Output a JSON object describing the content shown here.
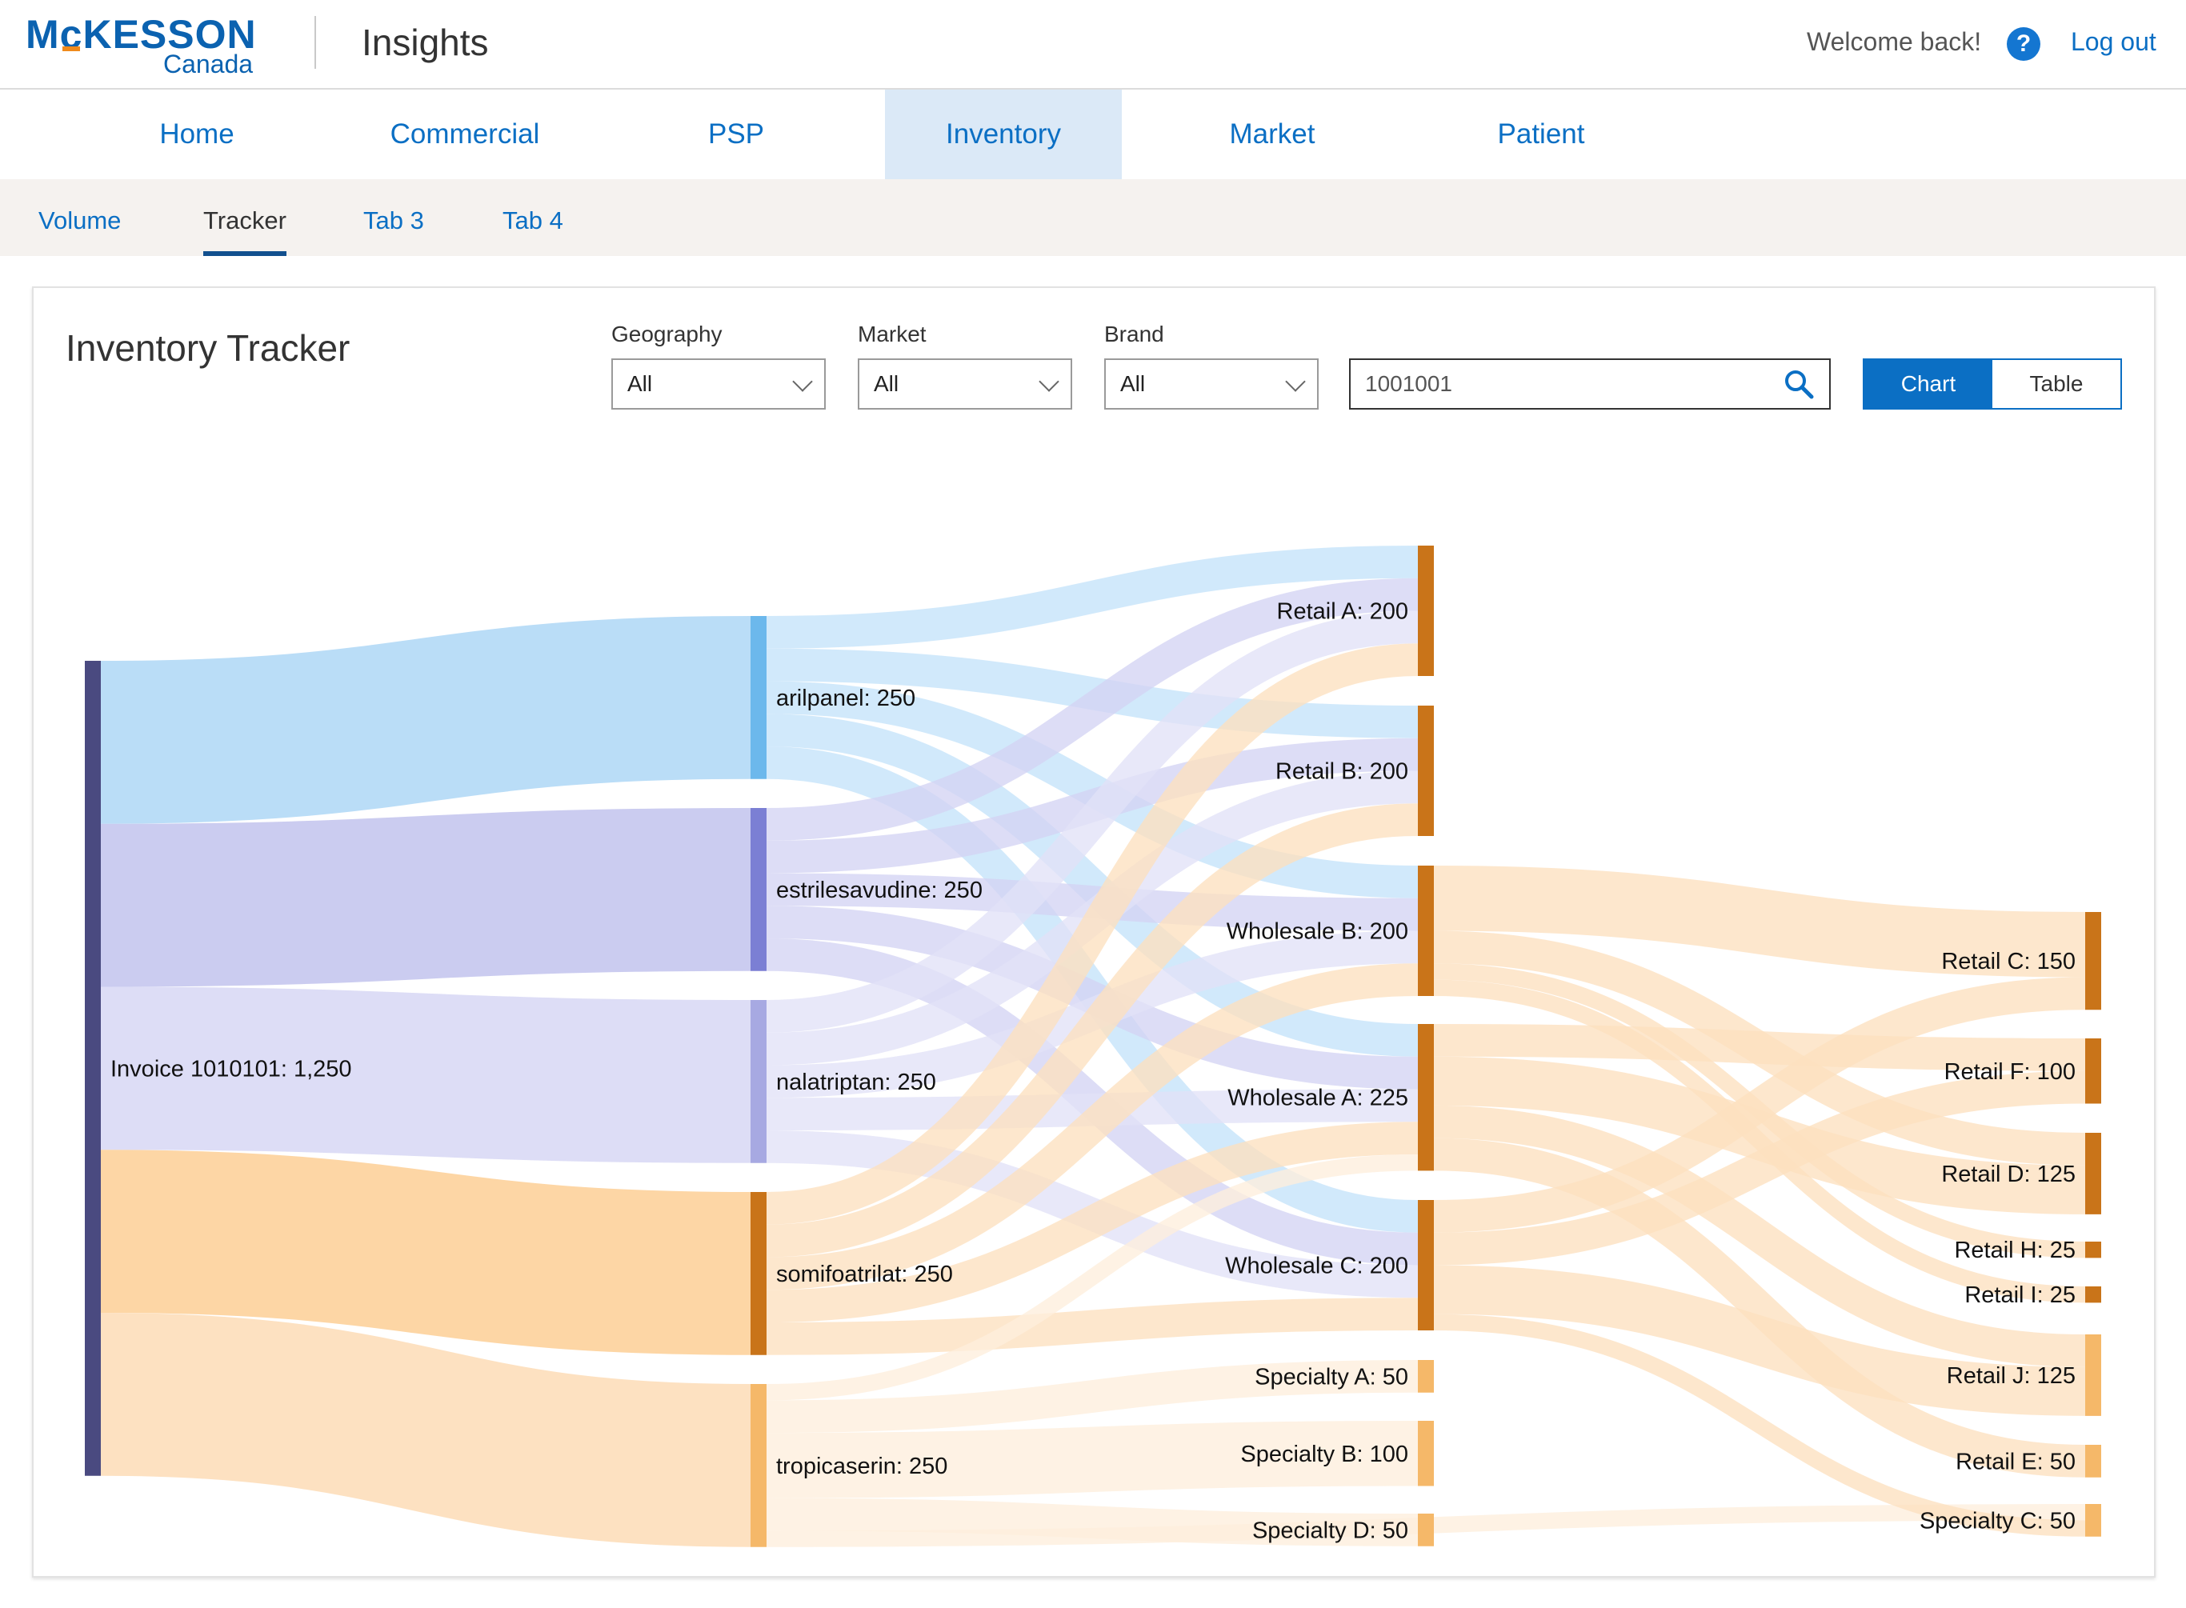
{
  "header": {
    "logo_text": "McKESSON",
    "logo_sub": "Canada",
    "app_title": "Insights",
    "welcome": "Welcome back!",
    "help_glyph": "?",
    "logout": "Log out"
  },
  "main_nav": [
    {
      "label": "Home",
      "active": false
    },
    {
      "label": "Commercial",
      "active": false
    },
    {
      "label": "PSP",
      "active": false
    },
    {
      "label": "Inventory",
      "active": true
    },
    {
      "label": "Market",
      "active": false
    },
    {
      "label": "Patient",
      "active": false
    }
  ],
  "sub_nav": [
    {
      "label": "Volume",
      "active": false
    },
    {
      "label": "Tracker",
      "active": true
    },
    {
      "label": "Tab 3",
      "active": false
    },
    {
      "label": "Tab 4",
      "active": false
    }
  ],
  "page": {
    "title": "Inventory Tracker",
    "filters": {
      "geography": {
        "label": "Geography",
        "value": "All"
      },
      "market": {
        "label": "Market",
        "value": "All"
      },
      "brand": {
        "label": "Brand",
        "value": "All"
      }
    },
    "search": {
      "value": "1001001",
      "icon": "search-icon"
    },
    "view_toggle": {
      "chart": "Chart",
      "table": "Table",
      "selected": "Chart"
    }
  },
  "chart_data": {
    "type": "sankey",
    "nodes": [
      {
        "id": "inv",
        "label": "Invoice 1010101: 1,250",
        "value": 1250,
        "color": "#4a4a80"
      },
      {
        "id": "aril",
        "label": "arilpanel: 250",
        "value": 250,
        "color": "#6cb8ec"
      },
      {
        "id": "estr",
        "label": "estrilesavudine: 250",
        "value": 250,
        "color": "#7b7fd4"
      },
      {
        "id": "nala",
        "label": "nalatriptan: 250",
        "value": 250,
        "color": "#a7a9e2"
      },
      {
        "id": "somi",
        "label": "somifoatrilat: 250",
        "value": 250,
        "color": "#c97419"
      },
      {
        "id": "trop",
        "label": "tropicaserin: 250",
        "value": 250,
        "color": "#f5b869"
      },
      {
        "id": "ra",
        "label": "Retail A: 200",
        "value": 200,
        "color": "#c97419"
      },
      {
        "id": "rb",
        "label": "Retail B: 200",
        "value": 200,
        "color": "#c97419"
      },
      {
        "id": "wb",
        "label": "Wholesale B: 200",
        "value": 200,
        "color": "#c97419"
      },
      {
        "id": "wa",
        "label": "Wholesale A: 225",
        "value": 225,
        "color": "#c97419"
      },
      {
        "id": "wc",
        "label": "Wholesale C: 200",
        "value": 200,
        "color": "#c97419"
      },
      {
        "id": "sa",
        "label": "Specialty A: 50",
        "value": 50,
        "color": "#f5b869"
      },
      {
        "id": "sb",
        "label": "Specialty B: 100",
        "value": 100,
        "color": "#f5b869"
      },
      {
        "id": "sd",
        "label": "Specialty D: 50",
        "value": 50,
        "color": "#f5b869"
      },
      {
        "id": "rc",
        "label": "Retail C: 150",
        "value": 150,
        "color": "#c97419"
      },
      {
        "id": "rf",
        "label": "Retail F: 100",
        "value": 100,
        "color": "#c97419"
      },
      {
        "id": "rd",
        "label": "Retail D: 125",
        "value": 125,
        "color": "#c97419"
      },
      {
        "id": "rh",
        "label": "Retail H: 25",
        "value": 25,
        "color": "#c97419"
      },
      {
        "id": "ri",
        "label": "Retail I: 25",
        "value": 25,
        "color": "#c97419"
      },
      {
        "id": "rj",
        "label": "Retail J: 125",
        "value": 125,
        "color": "#f5b869"
      },
      {
        "id": "re",
        "label": "Retail E: 50",
        "value": 50,
        "color": "#f5b869"
      },
      {
        "id": "sc",
        "label": "Specialty C: 50",
        "value": 50,
        "color": "#f5b869"
      }
    ],
    "links": [
      {
        "source": "inv",
        "target": "aril",
        "value": 250,
        "color": "#a6d4f5"
      },
      {
        "source": "inv",
        "target": "estr",
        "value": 250,
        "color": "#bdbeec"
      },
      {
        "source": "inv",
        "target": "nala",
        "value": 250,
        "color": "#d3d4f3"
      },
      {
        "source": "inv",
        "target": "somi",
        "value": 250,
        "color": "#fdca8c"
      },
      {
        "source": "inv",
        "target": "trop",
        "value": 250,
        "color": "#fdd9b0"
      },
      {
        "source": "aril",
        "target": "ra",
        "value": 50,
        "color": "#c4e3fa"
      },
      {
        "source": "aril",
        "target": "rb",
        "value": 50,
        "color": "#c4e3fa"
      },
      {
        "source": "aril",
        "target": "wb",
        "value": 50,
        "color": "#c4e3fa"
      },
      {
        "source": "aril",
        "target": "wa",
        "value": 50,
        "color": "#c4e3fa"
      },
      {
        "source": "aril",
        "target": "wc",
        "value": 50,
        "color": "#c4e3fa"
      },
      {
        "source": "estr",
        "target": "ra",
        "value": 50,
        "color": "#d3d4f3"
      },
      {
        "source": "estr",
        "target": "rb",
        "value": 50,
        "color": "#d3d4f3"
      },
      {
        "source": "estr",
        "target": "wb",
        "value": 50,
        "color": "#d3d4f3"
      },
      {
        "source": "estr",
        "target": "wa",
        "value": 50,
        "color": "#d3d4f3"
      },
      {
        "source": "estr",
        "target": "wc",
        "value": 50,
        "color": "#d3d4f3"
      },
      {
        "source": "nala",
        "target": "ra",
        "value": 50,
        "color": "#e2e2f7"
      },
      {
        "source": "nala",
        "target": "rb",
        "value": 50,
        "color": "#e2e2f7"
      },
      {
        "source": "nala",
        "target": "wb",
        "value": 50,
        "color": "#e2e2f7"
      },
      {
        "source": "nala",
        "target": "wa",
        "value": 50,
        "color": "#e2e2f7"
      },
      {
        "source": "nala",
        "target": "wc",
        "value": 50,
        "color": "#e2e2f7"
      },
      {
        "source": "somi",
        "target": "ra",
        "value": 50,
        "color": "#fde0bf"
      },
      {
        "source": "somi",
        "target": "rb",
        "value": 50,
        "color": "#fde0bf"
      },
      {
        "source": "somi",
        "target": "wb",
        "value": 50,
        "color": "#fde0bf"
      },
      {
        "source": "somi",
        "target": "wa",
        "value": 50,
        "color": "#fde0bf"
      },
      {
        "source": "somi",
        "target": "wc",
        "value": 50,
        "color": "#fde0bf"
      },
      {
        "source": "trop",
        "target": "wa",
        "value": 25,
        "color": "#feeedd"
      },
      {
        "source": "trop",
        "target": "sa",
        "value": 50,
        "color": "#feeedd"
      },
      {
        "source": "trop",
        "target": "sb",
        "value": 100,
        "color": "#feeedd"
      },
      {
        "source": "trop",
        "target": "sd",
        "value": 50,
        "color": "#feeedd"
      },
      {
        "source": "trop",
        "target": "sc",
        "value": 25,
        "color": "#feeedd"
      },
      {
        "source": "wb",
        "target": "rc",
        "value": 100,
        "color": "#fde0bf"
      },
      {
        "source": "wb",
        "target": "rd",
        "value": 50,
        "color": "#fde0bf"
      },
      {
        "source": "wb",
        "target": "rh",
        "value": 25,
        "color": "#fde0bf"
      },
      {
        "source": "wb",
        "target": "ri",
        "value": 25,
        "color": "#fde0bf"
      },
      {
        "source": "wa",
        "target": "rf",
        "value": 50,
        "color": "#fde0bf"
      },
      {
        "source": "wa",
        "target": "rd",
        "value": 75,
        "color": "#fde0bf"
      },
      {
        "source": "wa",
        "target": "rj",
        "value": 50,
        "color": "#fde0bf"
      },
      {
        "source": "wa",
        "target": "re",
        "value": 50,
        "color": "#fde0bf"
      },
      {
        "source": "wc",
        "target": "rc",
        "value": 50,
        "color": "#fde0bf"
      },
      {
        "source": "wc",
        "target": "rf",
        "value": 50,
        "color": "#fde0bf"
      },
      {
        "source": "wc",
        "target": "rj",
        "value": 75,
        "color": "#fde0bf"
      },
      {
        "source": "wc",
        "target": "sc",
        "value": 25,
        "color": "#fde0bf"
      }
    ]
  }
}
